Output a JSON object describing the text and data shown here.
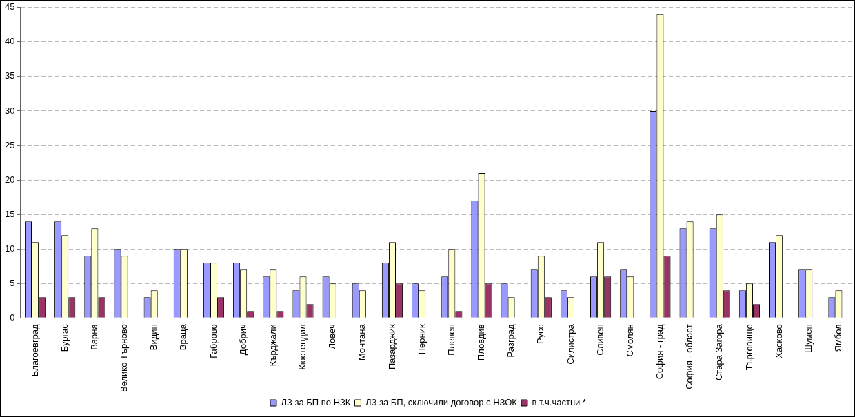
{
  "chart_data": {
    "type": "bar",
    "categories": [
      "Благоевград",
      "Бургас",
      "Варна",
      "Велико Търново",
      "Видин",
      "Враца",
      "Габрово",
      "Добрич",
      "Кърджали",
      "Кюстендил",
      "Ловеч",
      "Монтана",
      "Пазарджик",
      "Перник",
      "Плевен",
      "Пловдив",
      "Разград",
      "Русе",
      "Силистра",
      "Сливен",
      "Смолян",
      "София - град",
      "София - област",
      "Стара Загора",
      "Търговище",
      "Хасково",
      "Шумен",
      "Ямбол"
    ],
    "series": [
      {
        "name": "ЛЗ за БП по НЗК",
        "color": "#9999ff",
        "values": [
          14,
          14,
          9,
          10,
          3,
          10,
          8,
          8,
          6,
          4,
          6,
          5,
          8,
          5,
          6,
          17,
          5,
          7,
          4,
          6,
          7,
          30,
          13,
          13,
          4,
          11,
          7,
          3
        ]
      },
      {
        "name": "ЛЗ за БП, сключили договор с НЗОК",
        "color": "#ffffcc",
        "values": [
          11,
          12,
          13,
          9,
          4,
          10,
          8,
          7,
          7,
          6,
          5,
          4,
          11,
          4,
          10,
          21,
          3,
          9,
          3,
          11,
          6,
          44,
          14,
          15,
          5,
          12,
          7,
          4
        ]
      },
      {
        "name": "в т.ч.частни *",
        "color": "#993366",
        "values": [
          3,
          3,
          3,
          0,
          0,
          0,
          3,
          1,
          1,
          2,
          0,
          0,
          5,
          0,
          1,
          5,
          0,
          3,
          0,
          6,
          0,
          9,
          0,
          4,
          2,
          0,
          0,
          0
        ]
      }
    ],
    "ylim": [
      0,
      45
    ],
    "yticks": [
      0,
      5,
      10,
      15,
      20,
      25,
      30,
      35,
      40,
      45
    ],
    "grid": "y",
    "legend": "bottom"
  }
}
